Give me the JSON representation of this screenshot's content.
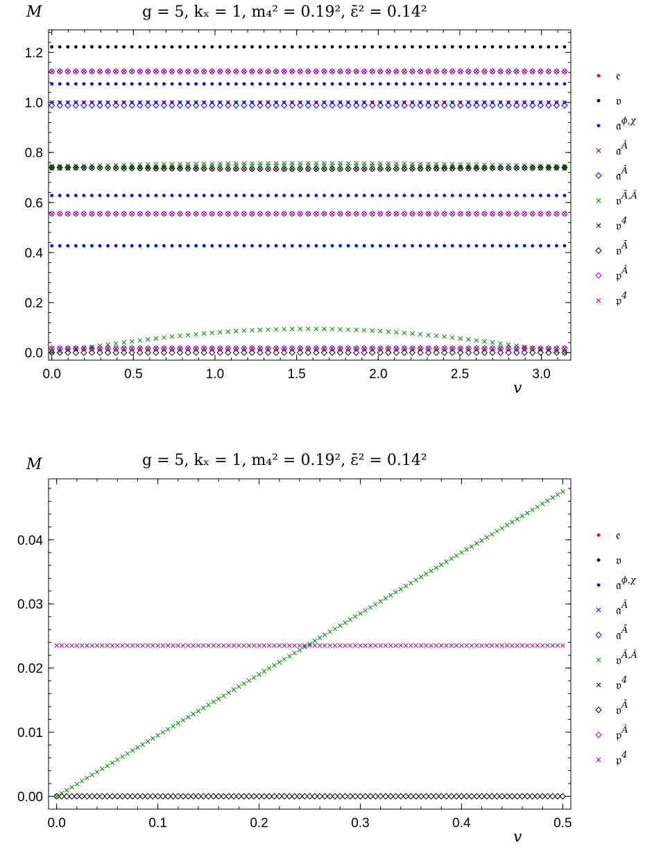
{
  "charts": [
    {
      "title": "g = 5,  kₓ = 1,  m₄² = 0.19²,  ε̄² = 0.14²",
      "ylabel": "M",
      "xlabel": "v",
      "xlim": [
        -0.02,
        3.18
      ],
      "ylim": [
        -0.03,
        1.29
      ],
      "xticks": [
        "0.0",
        "0.5",
        "1.0",
        "1.5",
        "2.0",
        "2.5",
        "3.0"
      ],
      "yticks": [
        "0.0",
        "0.2",
        "0.4",
        "0.6",
        "0.8",
        "1.0",
        "1.2"
      ]
    },
    {
      "title": "g = 5,  kₓ = 1,  m₄² = 0.19²,  ε̄² = 0.14²",
      "ylabel": "M",
      "xlabel": "v",
      "xlim": [
        -0.008,
        0.508
      ],
      "ylim": [
        -0.002,
        0.0495
      ],
      "xticks": [
        "0.0",
        "0.1",
        "0.2",
        "0.3",
        "0.4",
        "0.5"
      ],
      "yticks": [
        "0.00",
        "0.01",
        "0.02",
        "0.03",
        "0.04"
      ]
    }
  ],
  "legend": [
    {
      "label": "𝔢",
      "sup": "",
      "marker": "dot",
      "color": "#ff0000"
    },
    {
      "label": "𝔳",
      "sup": "",
      "marker": "dot",
      "color": "#000000"
    },
    {
      "label": "𝔞",
      "sup": "ϕ,χ",
      "marker": "dot",
      "color": "#0000ff"
    },
    {
      "label": "𝔞",
      "sup": "Â",
      "marker": "cross",
      "color": "#0000ff"
    },
    {
      "label": "𝔞",
      "sup": "Ā",
      "marker": "diamond",
      "color": "#0000ff"
    },
    {
      "label": "𝔳",
      "sup": "Ã,Â",
      "marker": "cross",
      "color": "#008000"
    },
    {
      "label": "𝔳",
      "sup": "4",
      "marker": "cross",
      "color": "#000000"
    },
    {
      "label": "𝔳",
      "sup": "Ā",
      "marker": "diamond",
      "color": "#000000"
    },
    {
      "label": "𝔭",
      "sup": "Â",
      "marker": "diamond",
      "color": "#aa00aa"
    },
    {
      "label": "𝔭",
      "sup": "4",
      "marker": "cross",
      "color": "#800080"
    }
  ],
  "chart_data": [
    {
      "type": "scatter",
      "x_range": [
        0,
        3.1416
      ],
      "series": [
        {
          "name": "e",
          "marker": "dot",
          "color": "#ff0000",
          "levels": [
            1.0
          ]
        },
        {
          "name": "v",
          "marker": "dot",
          "color": "#000000",
          "levels": [
            1.222
          ]
        },
        {
          "name": "a^{phi,chi}",
          "marker": "dot",
          "color": "#0000ff",
          "levels": [
            1.074,
            0.628,
            0.427
          ]
        },
        {
          "name": "a^{A hat}",
          "marker": "cross",
          "color": "#0000ff",
          "levels": [
            1.0
          ]
        },
        {
          "name": "a^{A bar}",
          "marker": "diamond",
          "color": "#0000ff",
          "levels": [
            0.988
          ]
        },
        {
          "name": "v^{A tilde, A hat}",
          "marker": "cross",
          "color": "#008000",
          "levels": [
            0.745,
            0.735
          ],
          "arch": {
            "base": 0.0,
            "peak": 0.095,
            "peak_x": 1.6
          }
        },
        {
          "name": "v^4",
          "marker": "cross",
          "color": "#000000",
          "levels": [
            0.74,
            0.017
          ]
        },
        {
          "name": "v^{A bar}",
          "marker": "diamond",
          "color": "#000000",
          "levels": [
            0.74,
            0.0
          ]
        },
        {
          "name": "p^{A hat}",
          "marker": "diamond",
          "color": "#aa00aa",
          "levels": [
            1.124,
            0.555,
            0.017
          ]
        },
        {
          "name": "p^4",
          "marker": "cross",
          "color": "#800080",
          "levels": [
            1.124,
            0.555,
            0.017
          ]
        }
      ]
    },
    {
      "type": "scatter",
      "x_range": [
        0,
        0.5
      ],
      "series": [
        {
          "name": "v^{A tilde, A hat}",
          "marker": "cross",
          "color": "#008000",
          "linear": {
            "y0": 0.0,
            "y1": 0.0475
          }
        },
        {
          "name": "p^4",
          "marker": "cross",
          "color": "#800080",
          "levels": [
            0.0235
          ]
        },
        {
          "name": "v^{A bar}",
          "marker": "diamond",
          "color": "#000000",
          "levels": [
            0.0
          ]
        }
      ]
    }
  ]
}
